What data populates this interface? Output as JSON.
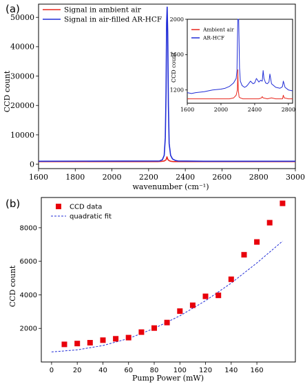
{
  "panels": {
    "a": {
      "label": "(a)"
    },
    "b": {
      "label": "(b)"
    }
  },
  "chart_data": [
    {
      "type": "line",
      "xlabel": "wavenumber (cm⁻¹)",
      "ylabel": "CCD count",
      "xlim": [
        1600,
        3000
      ],
      "ylim": [
        -1500,
        54500
      ],
      "xticks": [
        1600,
        1800,
        2000,
        2200,
        2400,
        2600,
        2800,
        3000
      ],
      "yticks": [
        0,
        10000,
        20000,
        30000,
        40000,
        50000
      ],
      "legend_position": "top-left",
      "series": [
        {
          "name": "Signal in ambient air",
          "color": "#e8261c",
          "x": [
            1600,
            2250,
            2270,
            2285,
            2295,
            2300,
            2305,
            2312,
            2320,
            2335,
            2350,
            2500,
            3000
          ],
          "y": [
            900,
            900,
            950,
            1100,
            1500,
            2500,
            1600,
            1200,
            1000,
            900,
            900,
            900,
            900
          ]
        },
        {
          "name": "Signal in air-filled AR-HCF",
          "color": "#1f2bd6",
          "x": [
            1600,
            2260,
            2275,
            2285,
            2291,
            2295,
            2298,
            2301,
            2304,
            2308,
            2312,
            2320,
            2330,
            2345,
            2360,
            2500,
            3000
          ],
          "y": [
            1000,
            1100,
            1500,
            3000,
            9000,
            25000,
            48000,
            53500,
            45000,
            20000,
            7000,
            3000,
            1800,
            1300,
            1100,
            1000,
            1000
          ]
        }
      ]
    },
    {
      "type": "line",
      "inset": true,
      "ylabel": "CCD count",
      "xlim": [
        1600,
        2850
      ],
      "ylim": [
        1050,
        2000
      ],
      "xticks": [
        1600,
        2000,
        2400,
        2800
      ],
      "yticks": [
        1200,
        1600,
        2000
      ],
      "legend_position": "top-left",
      "series": [
        {
          "name": "Ambient air",
          "color": "#e8261c",
          "x": [
            1600,
            1700,
            1800,
            1900,
            2000,
            2100,
            2150,
            2180,
            2195,
            2200,
            2205,
            2215,
            2230,
            2260,
            2300,
            2350,
            2400,
            2450,
            2480,
            2490,
            2500,
            2550,
            2600,
            2650,
            2700,
            2730,
            2740,
            2750,
            2800,
            2850
          ],
          "y": [
            1100,
            1100,
            1100,
            1100,
            1100,
            1100,
            1110,
            1140,
            1200,
            1430,
            1200,
            1120,
            1110,
            1100,
            1100,
            1100,
            1100,
            1100,
            1110,
            1125,
            1110,
            1100,
            1110,
            1100,
            1100,
            1100,
            1140,
            1110,
            1100,
            1100
          ]
        },
        {
          "name": "AR-HCF",
          "color": "#1f2bd6",
          "x": [
            1600,
            1650,
            1700,
            1800,
            1900,
            2000,
            2050,
            2100,
            2150,
            2180,
            2190,
            2200,
            2210,
            2220,
            2230,
            2250,
            2280,
            2300,
            2320,
            2350,
            2380,
            2400,
            2420,
            2450,
            2470,
            2490,
            2500,
            2510,
            2530,
            2550,
            2570,
            2580,
            2600,
            2650,
            2700,
            2720,
            2730,
            2740,
            2760,
            2800,
            2850
          ],
          "y": [
            1170,
            1160,
            1170,
            1180,
            1200,
            1210,
            1220,
            1240,
            1280,
            1330,
            1420,
            2000,
            2000,
            1450,
            1300,
            1250,
            1230,
            1240,
            1260,
            1300,
            1270,
            1280,
            1330,
            1290,
            1310,
            1300,
            1420,
            1330,
            1280,
            1270,
            1290,
            1380,
            1270,
            1230,
            1220,
            1230,
            1240,
            1300,
            1230,
            1200,
            1190
          ]
        }
      ]
    },
    {
      "type": "scatter",
      "xlabel": "Pump Power (mW)",
      "ylabel": "CCD count",
      "xlim": [
        -8,
        190
      ],
      "ylim": [
        0,
        9800
      ],
      "xticks": [
        0,
        20,
        40,
        60,
        80,
        100,
        120,
        140,
        160
      ],
      "yticks": [
        2000,
        4000,
        6000,
        8000
      ],
      "legend_position": "top-left",
      "series": [
        {
          "name": "CCD data",
          "color": "#e8000b",
          "marker": "square",
          "x": [
            10,
            20,
            30,
            40,
            50,
            60,
            70,
            80,
            90,
            100,
            110,
            120,
            130,
            140,
            150,
            160,
            170,
            180
          ],
          "y": [
            1050,
            1100,
            1150,
            1300,
            1380,
            1450,
            1780,
            2020,
            2350,
            3030,
            3380,
            3910,
            3970,
            4930,
            6390,
            7150,
            8300,
            9450
          ]
        },
        {
          "name": "quadratic fit",
          "color": "#1f2bd6",
          "style": "dashed",
          "x": [
            0,
            20,
            40,
            60,
            80,
            100,
            120,
            140,
            160,
            180
          ],
          "y": [
            600,
            720,
            980,
            1400,
            2000,
            2750,
            3650,
            4700,
            5900,
            7200
          ]
        }
      ]
    }
  ]
}
